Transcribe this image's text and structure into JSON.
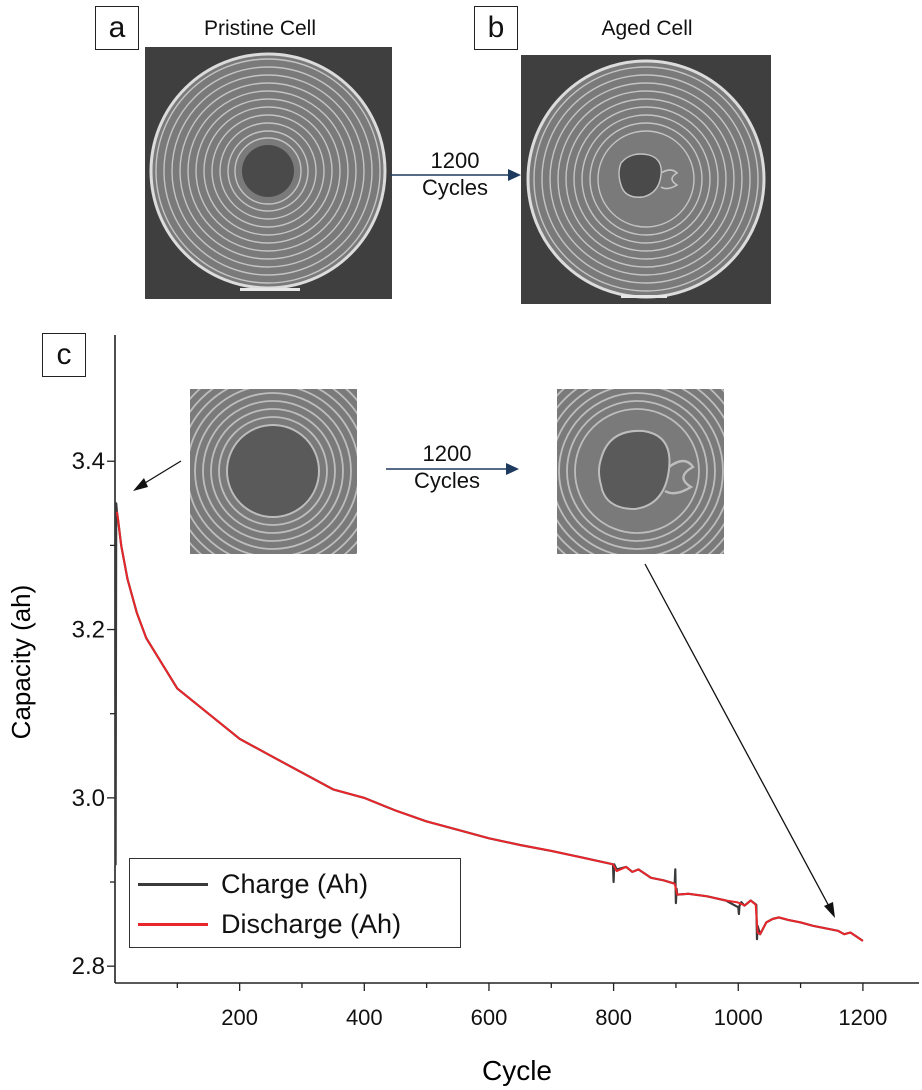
{
  "panels": {
    "a": {
      "letter": "a",
      "caption": "Pristine Cell"
    },
    "b": {
      "letter": "b",
      "caption": "Aged Cell"
    },
    "c": {
      "letter": "c"
    }
  },
  "transition": {
    "line1": "1200",
    "line2": "Cycles"
  },
  "inset_transition": {
    "line1": "1200",
    "line2": "Cycles"
  },
  "colors": {
    "charge": "#3a3a3a",
    "discharge": "#e8262b",
    "arrow": "#1f3a5f"
  },
  "chart_data": {
    "type": "line",
    "xlabel": "Cycle",
    "ylabel": "Capacity (ah)",
    "xlim": [
      0,
      1290
    ],
    "ylim": [
      2.78,
      3.55
    ],
    "xticks": [
      200,
      400,
      600,
      800,
      1000,
      1200
    ],
    "xtick_labels": [
      "200",
      "400",
      "600",
      "800",
      "1000",
      "1200"
    ],
    "yticks": [
      2.8,
      3.0,
      3.2,
      3.4
    ],
    "ytick_labels": [
      "2.8",
      "3.0",
      "3.2",
      "3.4"
    ],
    "legend": {
      "position": "bottom-left",
      "entries": [
        "Charge (Ah)",
        "Discharge (Ah)"
      ]
    },
    "series": [
      {
        "name": "Charge (Ah)",
        "color": "#3a3a3a",
        "x": [
          1,
          2,
          3,
          5,
          10,
          20,
          35,
          50,
          75,
          100,
          150,
          200,
          250,
          300,
          350,
          400,
          450,
          500,
          550,
          600,
          650,
          700,
          750,
          799,
          800,
          801,
          805,
          820,
          830,
          840,
          860,
          880,
          898,
          899,
          900,
          901,
          902,
          920,
          950,
          980,
          1000,
          1001,
          1002,
          1005,
          1010,
          1020,
          1029,
          1030,
          1031,
          1035,
          1045,
          1055,
          1065,
          1080,
          1100,
          1120,
          1140,
          1160,
          1170,
          1180,
          1190,
          1200
        ],
        "y": [
          2.92,
          3.35,
          3.34,
          3.33,
          3.3,
          3.26,
          3.22,
          3.19,
          3.16,
          3.13,
          3.1,
          3.07,
          3.05,
          3.03,
          3.01,
          3.0,
          2.985,
          2.972,
          2.962,
          2.952,
          2.944,
          2.937,
          2.929,
          2.921,
          2.9,
          2.921,
          2.915,
          2.918,
          2.912,
          2.915,
          2.905,
          2.902,
          2.898,
          2.915,
          2.875,
          2.892,
          2.885,
          2.886,
          2.883,
          2.878,
          2.87,
          2.862,
          2.872,
          2.876,
          2.872,
          2.878,
          2.873,
          2.832,
          2.848,
          2.838,
          2.852,
          2.856,
          2.858,
          2.855,
          2.852,
          2.848,
          2.845,
          2.842,
          2.838,
          2.84,
          2.835,
          2.83
        ]
      },
      {
        "name": "Discharge (Ah)",
        "color": "#e8262b",
        "x": [
          3,
          5,
          10,
          20,
          35,
          50,
          75,
          100,
          150,
          200,
          250,
          300,
          350,
          400,
          450,
          500,
          550,
          600,
          650,
          700,
          750,
          799,
          805,
          820,
          830,
          840,
          860,
          880,
          898,
          902,
          920,
          950,
          980,
          998,
          1005,
          1010,
          1020,
          1028,
          1031,
          1035,
          1045,
          1055,
          1065,
          1080,
          1100,
          1120,
          1140,
          1160,
          1170,
          1180,
          1190,
          1200
        ],
        "y": [
          3.34,
          3.33,
          3.3,
          3.26,
          3.22,
          3.19,
          3.16,
          3.13,
          3.1,
          3.07,
          3.05,
          3.03,
          3.01,
          3.0,
          2.985,
          2.972,
          2.962,
          2.952,
          2.944,
          2.937,
          2.929,
          2.921,
          2.913,
          2.918,
          2.912,
          2.915,
          2.905,
          2.902,
          2.898,
          2.885,
          2.886,
          2.883,
          2.878,
          2.876,
          2.874,
          2.872,
          2.878,
          2.873,
          2.84,
          2.838,
          2.852,
          2.856,
          2.858,
          2.855,
          2.852,
          2.848,
          2.845,
          2.842,
          2.838,
          2.84,
          2.835,
          2.83
        ]
      }
    ]
  }
}
